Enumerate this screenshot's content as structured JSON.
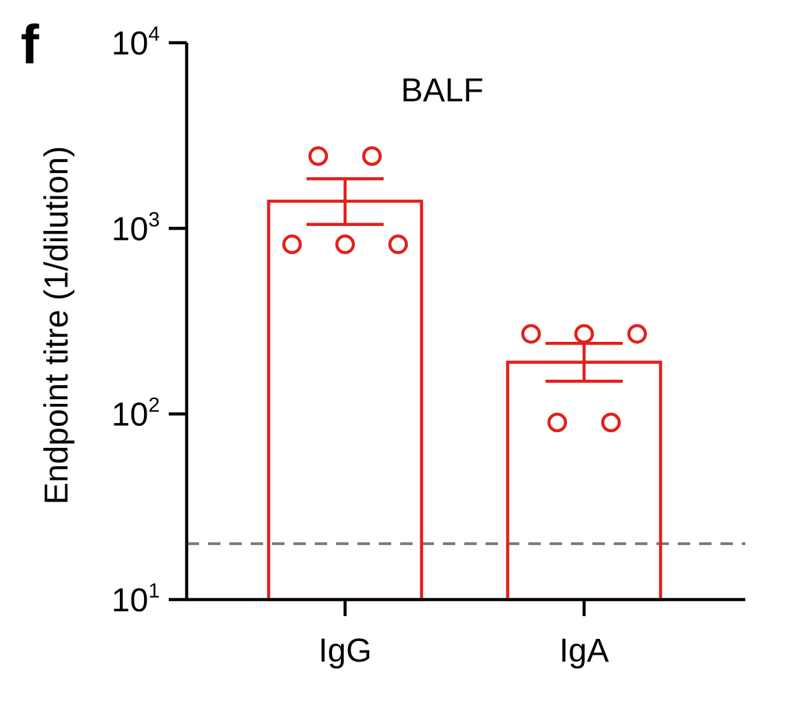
{
  "panel_label": "f",
  "chart_data": {
    "type": "bar",
    "title": "BALF",
    "ylabel": "Endpoint titre (1/dilution)",
    "xlabel": "",
    "yscale": "log",
    "ylim": [
      10,
      10000
    ],
    "y_ticks": [
      {
        "value": 10,
        "base": "10",
        "exp": "1"
      },
      {
        "value": 100,
        "base": "10",
        "exp": "2"
      },
      {
        "value": 1000,
        "base": "10",
        "exp": "3"
      },
      {
        "value": 10000,
        "base": "10",
        "exp": "4"
      }
    ],
    "categories": [
      "IgG",
      "IgA"
    ],
    "values": [
      1400,
      190
    ],
    "error": [
      {
        "low": 1050,
        "high": 1850
      },
      {
        "low": 150,
        "high": 240
      }
    ],
    "points": [
      [
        2450,
        2450,
        820,
        820,
        820
      ],
      [
        270,
        270,
        270,
        90,
        90
      ]
    ],
    "detection_limit": 20,
    "bar_fill": "none",
    "color": "#e3201b",
    "dashed_line_color": "#7a7a7a"
  }
}
